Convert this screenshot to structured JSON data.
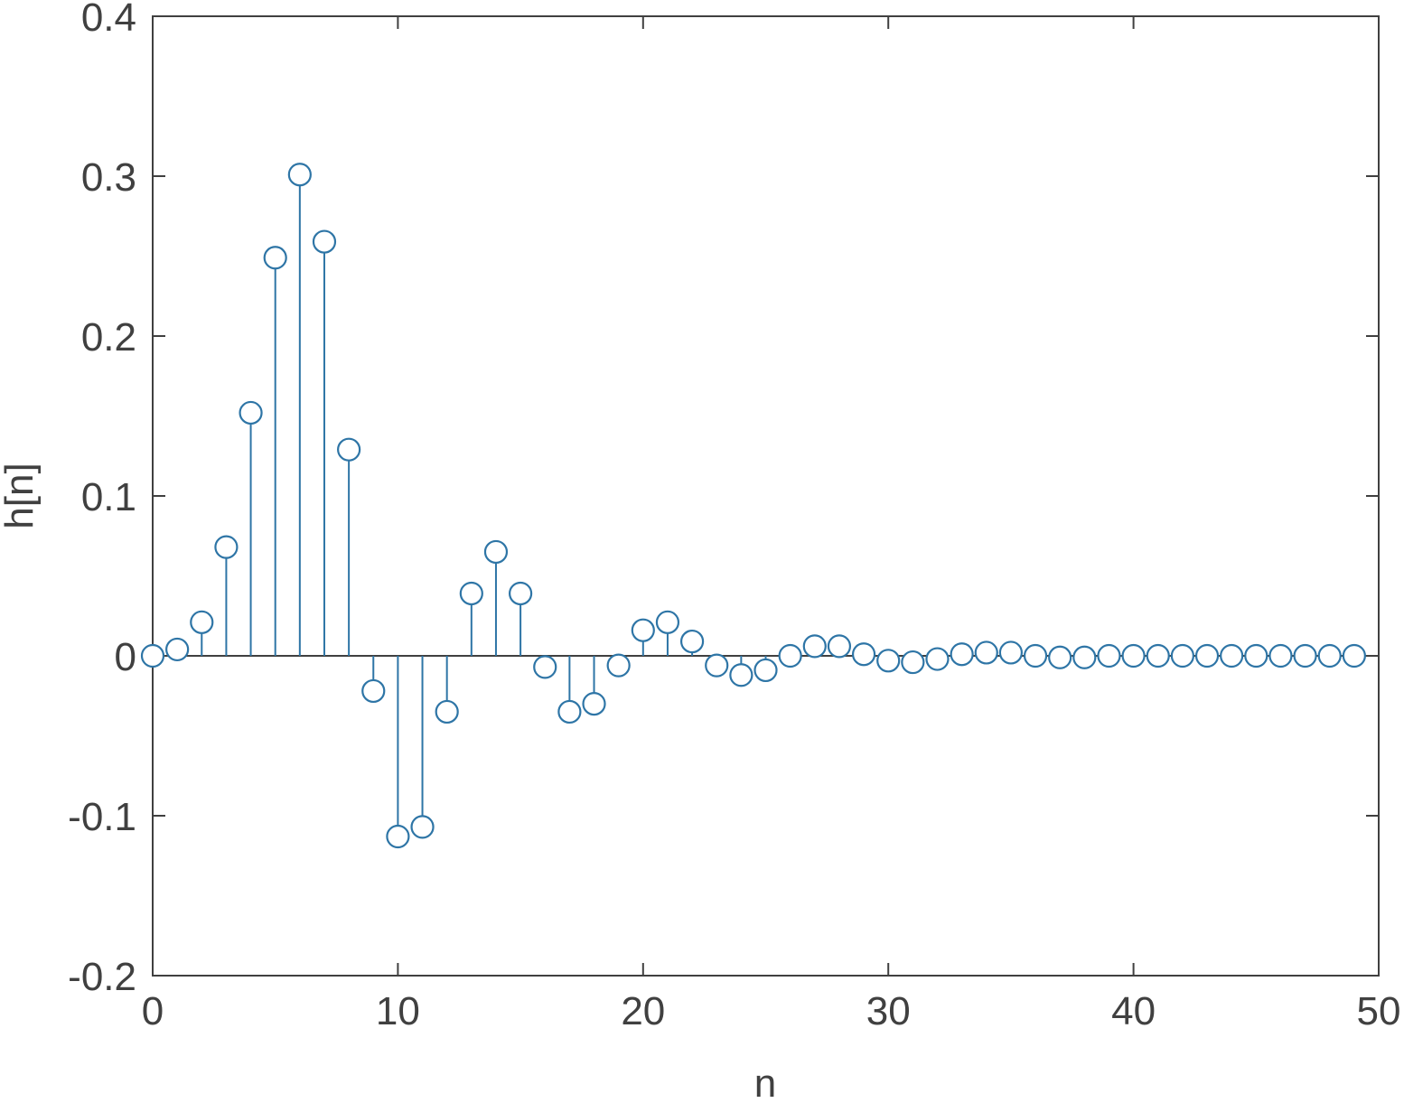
{
  "chart_data": {
    "type": "stem",
    "title": "",
    "xlabel": "n",
    "ylabel": "h[n]",
    "xlim": [
      0,
      50
    ],
    "ylim": [
      -0.2,
      0.4
    ],
    "grid": false,
    "box": true,
    "x_ticks": [
      0,
      10,
      20,
      30,
      40,
      50
    ],
    "x_tick_labels": [
      "0",
      "10",
      "20",
      "30",
      "40",
      "50"
    ],
    "y_ticks": [
      -0.2,
      -0.1,
      0,
      0.1,
      0.2,
      0.3,
      0.4
    ],
    "y_tick_labels": [
      "-0.2",
      "-0.1",
      "0",
      "0.1",
      "0.2",
      "0.3",
      "0.4"
    ],
    "colors": {
      "series": "#2e75a6",
      "axes": "#404040",
      "baseline": "#404040"
    },
    "series": [
      {
        "marker": "circle",
        "x": [
          0,
          1,
          2,
          3,
          4,
          5,
          6,
          7,
          8,
          9,
          10,
          11,
          12,
          13,
          14,
          15,
          16,
          17,
          18,
          19,
          20,
          21,
          22,
          23,
          24,
          25,
          26,
          27,
          28,
          29,
          30,
          31,
          32,
          33,
          34,
          35,
          36,
          37,
          38,
          39,
          40,
          41,
          42,
          43,
          44,
          45,
          46,
          47,
          48,
          49
        ],
        "values": [
          0.0,
          0.004,
          0.021,
          0.068,
          0.152,
          0.249,
          0.301,
          0.259,
          0.129,
          -0.022,
          -0.113,
          -0.107,
          -0.035,
          0.039,
          0.065,
          0.039,
          -0.007,
          -0.035,
          -0.03,
          -0.006,
          0.016,
          0.021,
          0.009,
          -0.006,
          -0.012,
          -0.009,
          0.0,
          0.006,
          0.006,
          0.001,
          -0.003,
          -0.004,
          -0.002,
          0.001,
          0.002,
          0.002,
          0.0,
          -0.001,
          -0.001,
          0.0,
          0.0,
          0.0,
          0.0,
          0.0,
          0.0,
          0.0,
          0.0,
          0.0,
          0.0,
          0.0
        ]
      }
    ]
  }
}
